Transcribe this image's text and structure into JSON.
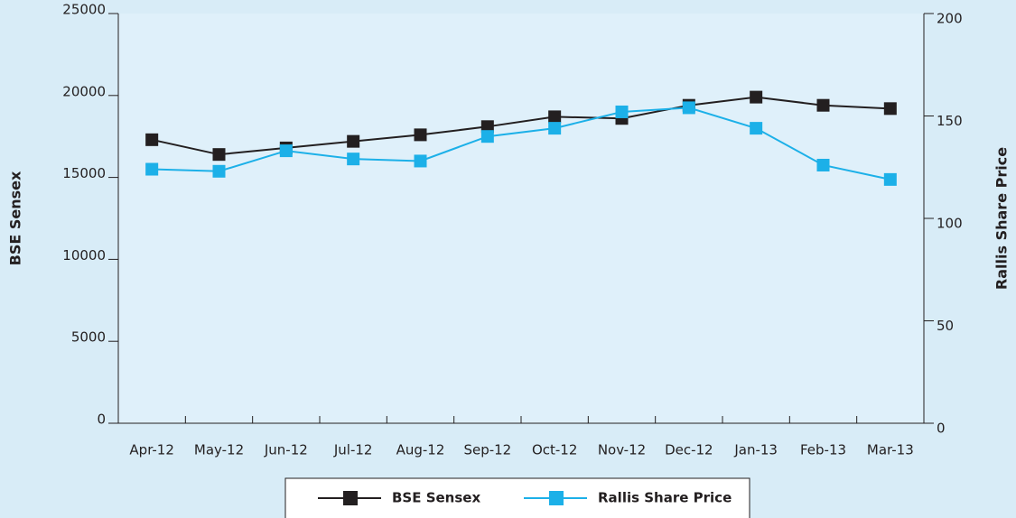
{
  "chart_data": {
    "type": "line",
    "categories": [
      "Apr-12",
      "May-12",
      "Jun-12",
      "Jul-12",
      "Aug-12",
      "Sep-12",
      "Oct-12",
      "Nov-12",
      "Dec-12",
      "Jan-13",
      "Feb-13",
      "Mar-13"
    ],
    "series": [
      {
        "name": "BSE Sensex",
        "color": "#231f20",
        "values": [
          17300,
          16400,
          16800,
          17200,
          17600,
          18100,
          18700,
          18600,
          19400,
          19900,
          19400,
          19200
        ]
      },
      {
        "name": "Rallis Share Price",
        "color": "#1cb0e8",
        "axis": "y2",
        "values": [
          124,
          123,
          133,
          129,
          128,
          140,
          144,
          152,
          154,
          144,
          126,
          119
        ]
      }
    ],
    "ylabel": "BSE Sensex",
    "y2label": "Rallis Share Price",
    "ylim": [
      0,
      25000
    ],
    "yticks": [
      0,
      5000,
      10000,
      15000,
      20000,
      25000
    ],
    "y2lim": [
      0,
      200
    ],
    "y2ticks": [
      0,
      50,
      100,
      150,
      200
    ],
    "legend": "bottom"
  }
}
